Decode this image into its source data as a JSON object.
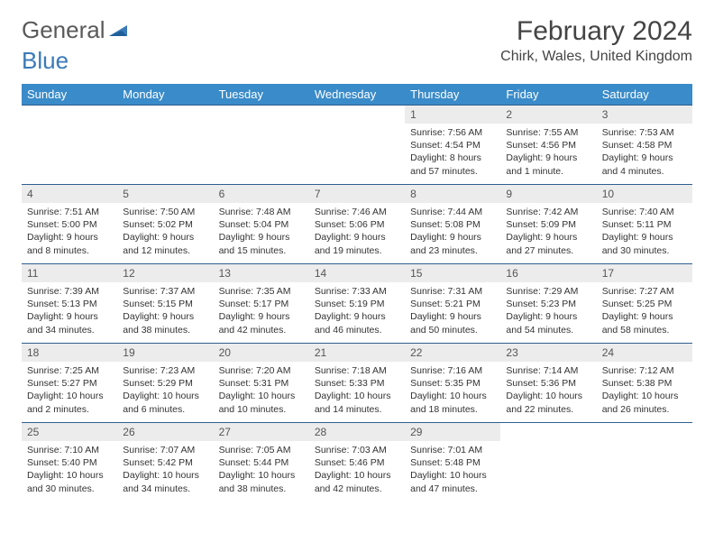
{
  "brand": {
    "part1": "General",
    "part2": "Blue"
  },
  "title": "February 2024",
  "location": "Chirk, Wales, United Kingdom",
  "colors": {
    "header_bg": "#3a8bc9",
    "header_text": "#ffffff",
    "daynum_bg": "#ececec",
    "border": "#2f5f8f",
    "brand_blue": "#3a7ab8",
    "text": "#333333",
    "background": "#ffffff"
  },
  "weekdays": [
    "Sunday",
    "Monday",
    "Tuesday",
    "Wednesday",
    "Thursday",
    "Friday",
    "Saturday"
  ],
  "weeks": [
    [
      null,
      null,
      null,
      null,
      {
        "n": "1",
        "sr": "Sunrise: 7:56 AM",
        "ss": "Sunset: 4:54 PM",
        "dl1": "Daylight: 8 hours",
        "dl2": "and 57 minutes."
      },
      {
        "n": "2",
        "sr": "Sunrise: 7:55 AM",
        "ss": "Sunset: 4:56 PM",
        "dl1": "Daylight: 9 hours",
        "dl2": "and 1 minute."
      },
      {
        "n": "3",
        "sr": "Sunrise: 7:53 AM",
        "ss": "Sunset: 4:58 PM",
        "dl1": "Daylight: 9 hours",
        "dl2": "and 4 minutes."
      }
    ],
    [
      {
        "n": "4",
        "sr": "Sunrise: 7:51 AM",
        "ss": "Sunset: 5:00 PM",
        "dl1": "Daylight: 9 hours",
        "dl2": "and 8 minutes."
      },
      {
        "n": "5",
        "sr": "Sunrise: 7:50 AM",
        "ss": "Sunset: 5:02 PM",
        "dl1": "Daylight: 9 hours",
        "dl2": "and 12 minutes."
      },
      {
        "n": "6",
        "sr": "Sunrise: 7:48 AM",
        "ss": "Sunset: 5:04 PM",
        "dl1": "Daylight: 9 hours",
        "dl2": "and 15 minutes."
      },
      {
        "n": "7",
        "sr": "Sunrise: 7:46 AM",
        "ss": "Sunset: 5:06 PM",
        "dl1": "Daylight: 9 hours",
        "dl2": "and 19 minutes."
      },
      {
        "n": "8",
        "sr": "Sunrise: 7:44 AM",
        "ss": "Sunset: 5:08 PM",
        "dl1": "Daylight: 9 hours",
        "dl2": "and 23 minutes."
      },
      {
        "n": "9",
        "sr": "Sunrise: 7:42 AM",
        "ss": "Sunset: 5:09 PM",
        "dl1": "Daylight: 9 hours",
        "dl2": "and 27 minutes."
      },
      {
        "n": "10",
        "sr": "Sunrise: 7:40 AM",
        "ss": "Sunset: 5:11 PM",
        "dl1": "Daylight: 9 hours",
        "dl2": "and 30 minutes."
      }
    ],
    [
      {
        "n": "11",
        "sr": "Sunrise: 7:39 AM",
        "ss": "Sunset: 5:13 PM",
        "dl1": "Daylight: 9 hours",
        "dl2": "and 34 minutes."
      },
      {
        "n": "12",
        "sr": "Sunrise: 7:37 AM",
        "ss": "Sunset: 5:15 PM",
        "dl1": "Daylight: 9 hours",
        "dl2": "and 38 minutes."
      },
      {
        "n": "13",
        "sr": "Sunrise: 7:35 AM",
        "ss": "Sunset: 5:17 PM",
        "dl1": "Daylight: 9 hours",
        "dl2": "and 42 minutes."
      },
      {
        "n": "14",
        "sr": "Sunrise: 7:33 AM",
        "ss": "Sunset: 5:19 PM",
        "dl1": "Daylight: 9 hours",
        "dl2": "and 46 minutes."
      },
      {
        "n": "15",
        "sr": "Sunrise: 7:31 AM",
        "ss": "Sunset: 5:21 PM",
        "dl1": "Daylight: 9 hours",
        "dl2": "and 50 minutes."
      },
      {
        "n": "16",
        "sr": "Sunrise: 7:29 AM",
        "ss": "Sunset: 5:23 PM",
        "dl1": "Daylight: 9 hours",
        "dl2": "and 54 minutes."
      },
      {
        "n": "17",
        "sr": "Sunrise: 7:27 AM",
        "ss": "Sunset: 5:25 PM",
        "dl1": "Daylight: 9 hours",
        "dl2": "and 58 minutes."
      }
    ],
    [
      {
        "n": "18",
        "sr": "Sunrise: 7:25 AM",
        "ss": "Sunset: 5:27 PM",
        "dl1": "Daylight: 10 hours",
        "dl2": "and 2 minutes."
      },
      {
        "n": "19",
        "sr": "Sunrise: 7:23 AM",
        "ss": "Sunset: 5:29 PM",
        "dl1": "Daylight: 10 hours",
        "dl2": "and 6 minutes."
      },
      {
        "n": "20",
        "sr": "Sunrise: 7:20 AM",
        "ss": "Sunset: 5:31 PM",
        "dl1": "Daylight: 10 hours",
        "dl2": "and 10 minutes."
      },
      {
        "n": "21",
        "sr": "Sunrise: 7:18 AM",
        "ss": "Sunset: 5:33 PM",
        "dl1": "Daylight: 10 hours",
        "dl2": "and 14 minutes."
      },
      {
        "n": "22",
        "sr": "Sunrise: 7:16 AM",
        "ss": "Sunset: 5:35 PM",
        "dl1": "Daylight: 10 hours",
        "dl2": "and 18 minutes."
      },
      {
        "n": "23",
        "sr": "Sunrise: 7:14 AM",
        "ss": "Sunset: 5:36 PM",
        "dl1": "Daylight: 10 hours",
        "dl2": "and 22 minutes."
      },
      {
        "n": "24",
        "sr": "Sunrise: 7:12 AM",
        "ss": "Sunset: 5:38 PM",
        "dl1": "Daylight: 10 hours",
        "dl2": "and 26 minutes."
      }
    ],
    [
      {
        "n": "25",
        "sr": "Sunrise: 7:10 AM",
        "ss": "Sunset: 5:40 PM",
        "dl1": "Daylight: 10 hours",
        "dl2": "and 30 minutes."
      },
      {
        "n": "26",
        "sr": "Sunrise: 7:07 AM",
        "ss": "Sunset: 5:42 PM",
        "dl1": "Daylight: 10 hours",
        "dl2": "and 34 minutes."
      },
      {
        "n": "27",
        "sr": "Sunrise: 7:05 AM",
        "ss": "Sunset: 5:44 PM",
        "dl1": "Daylight: 10 hours",
        "dl2": "and 38 minutes."
      },
      {
        "n": "28",
        "sr": "Sunrise: 7:03 AM",
        "ss": "Sunset: 5:46 PM",
        "dl1": "Daylight: 10 hours",
        "dl2": "and 42 minutes."
      },
      {
        "n": "29",
        "sr": "Sunrise: 7:01 AM",
        "ss": "Sunset: 5:48 PM",
        "dl1": "Daylight: 10 hours",
        "dl2": "and 47 minutes."
      },
      null,
      null
    ]
  ]
}
